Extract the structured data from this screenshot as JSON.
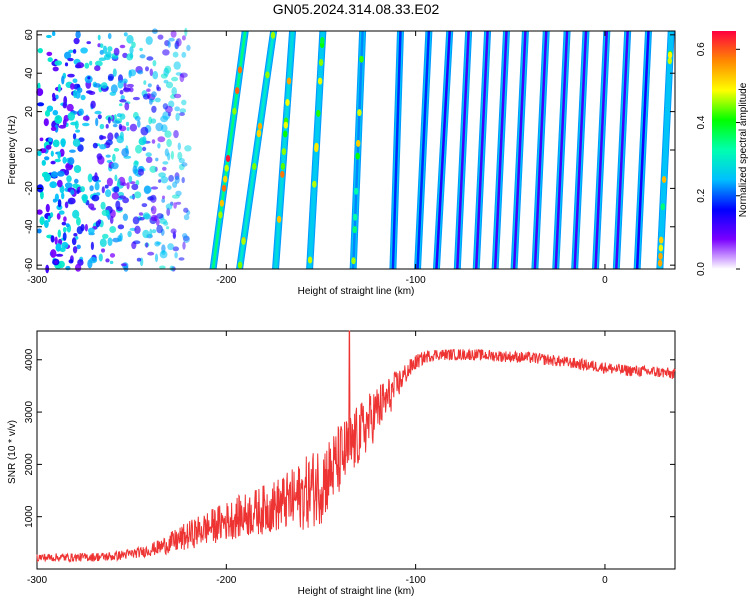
{
  "title": "GN05.2024.314.08.33.E02",
  "colors": {
    "snr_line": "#ee3333",
    "axis": "#000000",
    "background": "#ffffff"
  },
  "chart_data": [
    {
      "type": "heatmap",
      "xlabel": "Height of straight line (km)",
      "ylabel": "Frequency (Hz)",
      "xlim": [
        -300,
        37
      ],
      "ylim": [
        -62,
        62
      ],
      "x_ticks": [
        "-300",
        "-200",
        "-100",
        "0"
      ],
      "x_tick_values": [
        -300,
        -200,
        -100,
        0
      ],
      "y_ticks": [
        "60",
        "40",
        "20",
        "0",
        "-20",
        "-40",
        "-60"
      ],
      "y_tick_values": [
        60,
        40,
        20,
        0,
        -20,
        -40,
        -60
      ],
      "grid": false,
      "colorbar": {
        "label": "Normalized spectral amplitude",
        "range": [
          0,
          0.65
        ],
        "ticks": [
          "0.0",
          "0.2",
          "0.4",
          "0.6"
        ],
        "tick_values": [
          0.0,
          0.2,
          0.4,
          0.6
        ],
        "colormap": [
          "#ffffff",
          "#7a00ff",
          "#0000ff",
          "#00bfff",
          "#00ffb0",
          "#00ff00",
          "#ffff00",
          "#ff8800",
          "#ff0040"
        ]
      },
      "stripes": [
        {
          "x_at_f_min": -207,
          "x_at_f_max": -190,
          "amplitude": 0.35
        },
        {
          "x_at_f_min": -193,
          "x_at_f_max": -175,
          "amplitude": 0.3
        },
        {
          "x_at_f_min": -174,
          "x_at_f_max": -165,
          "amplitude": 0.28
        },
        {
          "x_at_f_min": -156,
          "x_at_f_max": -149,
          "amplitude": 0.26
        },
        {
          "x_at_f_min": -133,
          "x_at_f_max": -128,
          "amplitude": 0.22
        },
        {
          "x_at_f_min": -112,
          "x_at_f_max": -108,
          "amplitude": 0.18
        },
        {
          "x_at_f_min": -99,
          "x_at_f_max": -93,
          "amplitude": 0.18
        },
        {
          "x_at_f_min": -89,
          "x_at_f_max": -82,
          "amplitude": 0.14
        },
        {
          "x_at_f_min": -78,
          "x_at_f_max": -72,
          "amplitude": 0.12
        },
        {
          "x_at_f_min": -68,
          "x_at_f_max": -62,
          "amplitude": 0.12
        },
        {
          "x_at_f_min": -58,
          "x_at_f_max": -52,
          "amplitude": 0.12
        },
        {
          "x_at_f_min": -48,
          "x_at_f_max": -42,
          "amplitude": 0.12
        },
        {
          "x_at_f_min": -37,
          "x_at_f_max": -31,
          "amplitude": 0.12
        },
        {
          "x_at_f_min": -26,
          "x_at_f_max": -20,
          "amplitude": 0.12
        },
        {
          "x_at_f_min": -16,
          "x_at_f_max": -10,
          "amplitude": 0.12
        },
        {
          "x_at_f_min": -5,
          "x_at_f_max": 1,
          "amplitude": 0.12
        },
        {
          "x_at_f_min": 6,
          "x_at_f_max": 12,
          "amplitude": 0.12
        },
        {
          "x_at_f_min": 17,
          "x_at_f_max": 23,
          "amplitude": 0.15
        },
        {
          "x_at_f_min": 29,
          "x_at_f_max": 35,
          "amplitude": 0.25
        }
      ],
      "noise_region": {
        "x_from": -300,
        "x_to": -220,
        "amplitude": 0.08
      }
    },
    {
      "type": "line",
      "xlabel": "Height of straight line (km)",
      "ylabel": "SNR (10 * v/v)",
      "xlim": [
        -300,
        37
      ],
      "ylim": [
        0,
        4550
      ],
      "x_ticks": [
        "-300",
        "-200",
        "-100",
        "0"
      ],
      "x_tick_values": [
        -300,
        -200,
        -100,
        0
      ],
      "y_ticks": [
        "1000",
        "2000",
        "3000",
        "4000"
      ],
      "y_tick_values": [
        1000,
        2000,
        3000,
        4000
      ],
      "grid": false,
      "series": [
        {
          "x": [
            -300,
            -280,
            -260,
            -245,
            -235,
            -225,
            -215,
            -205,
            -195,
            -185,
            -175,
            -165,
            -158,
            -150,
            -145,
            -140,
            -135,
            -130,
            -125,
            -120,
            -115,
            -110,
            -105,
            -100,
            -95,
            -90,
            -80,
            -70,
            -60,
            -50,
            -40,
            -30,
            -20,
            -10,
            0,
            10,
            20,
            30,
            37
          ],
          "y": [
            220,
            220,
            240,
            320,
            420,
            560,
            720,
            850,
            980,
            1080,
            1200,
            1320,
            1450,
            1650,
            1850,
            2100,
            2300,
            2550,
            2800,
            3050,
            3250,
            3500,
            3750,
            3950,
            4050,
            4100,
            4100,
            4100,
            4080,
            4060,
            4040,
            4000,
            3950,
            3900,
            3850,
            3800,
            3780,
            3760,
            3720
          ],
          "noise": [
            80,
            80,
            90,
            100,
            150,
            250,
            300,
            350,
            400,
            450,
            500,
            600,
            700,
            800,
            700,
            700,
            650,
            600,
            550,
            500,
            400,
            300,
            200,
            150,
            120,
            110,
            110,
            110,
            110,
            110,
            110,
            110,
            110,
            110,
            110,
            110,
            110,
            110,
            110
          ],
          "peak": {
            "x": -135,
            "y": 4550
          }
        }
      ]
    }
  ]
}
